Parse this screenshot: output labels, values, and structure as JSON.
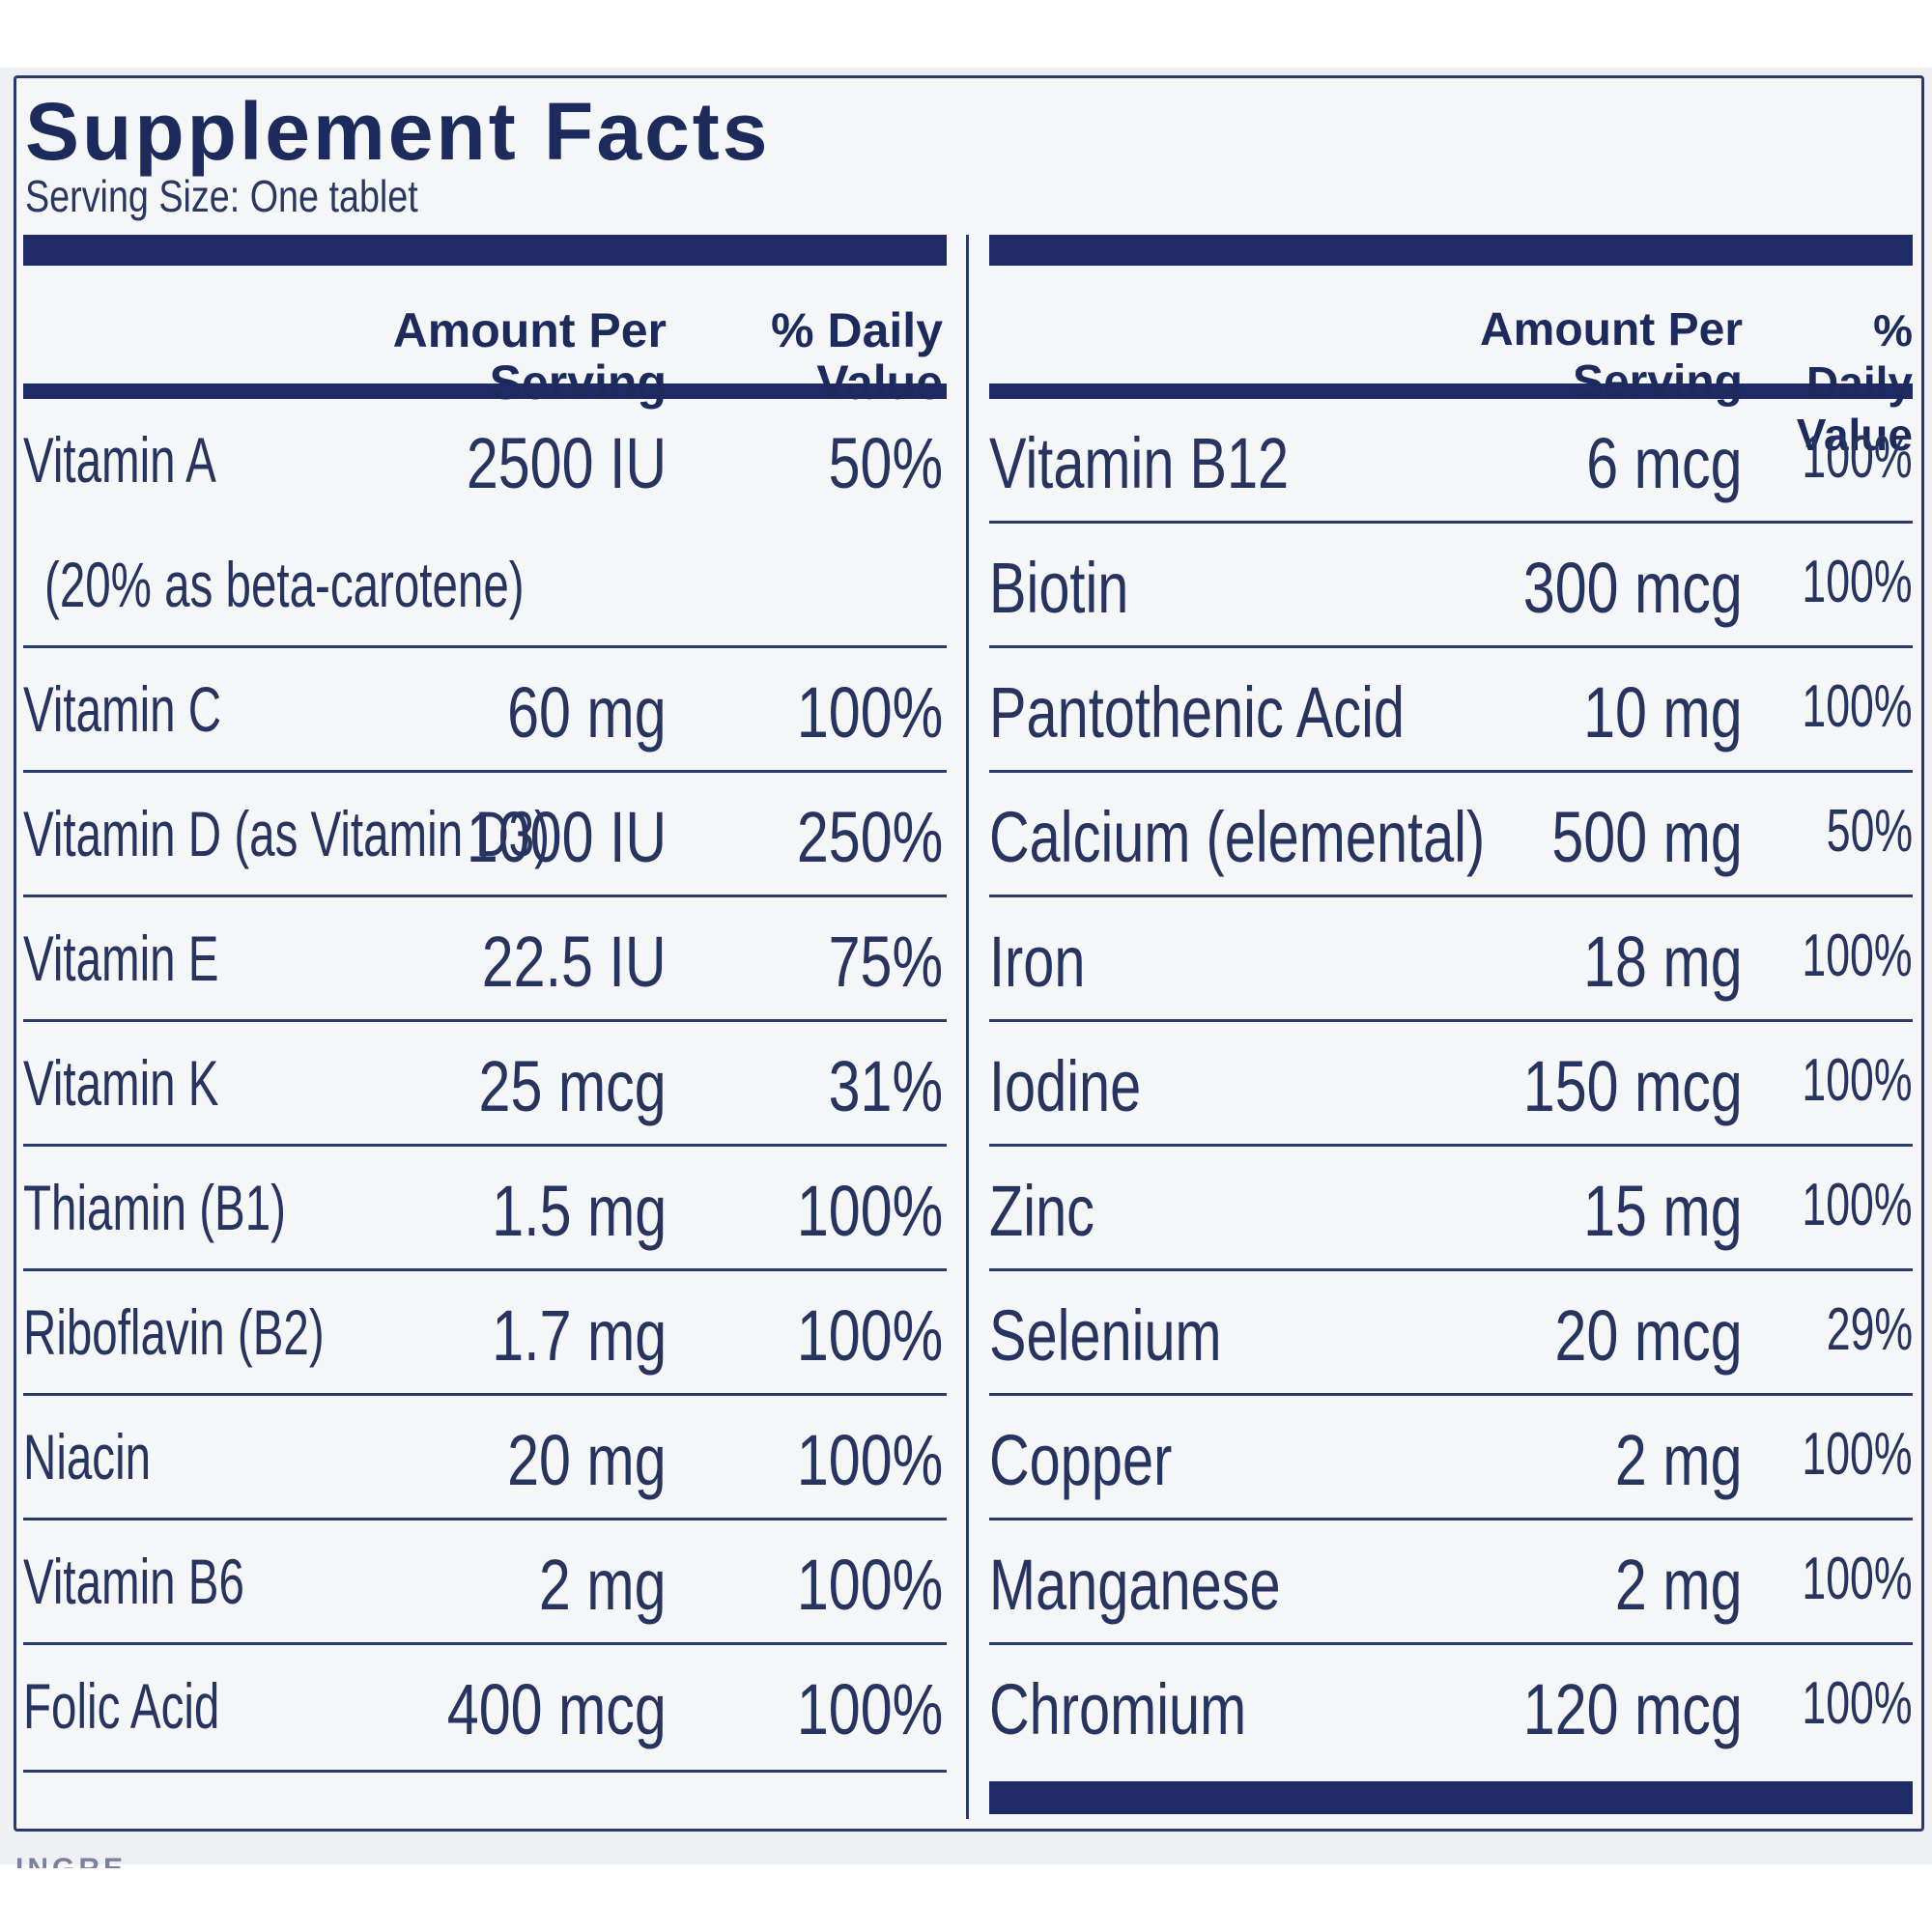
{
  "title": "Supplement Facts",
  "serving_size": "Serving Size: One tablet",
  "headers": {
    "amount": "Amount Per Serving",
    "daily_value": "% Daily Value"
  },
  "left_rows": [
    {
      "name": "Vitamin A",
      "amount": "2500 IU",
      "dv": "50%"
    },
    {
      "name": "(20% as beta-carotene)",
      "amount": "",
      "dv": ""
    },
    {
      "name": "Vitamin C",
      "amount": "60 mg",
      "dv": "100%"
    },
    {
      "name": "Vitamin D (as Vitamin D3)",
      "amount": "1000 IU",
      "dv": "250%"
    },
    {
      "name": "Vitamin E",
      "amount": "22.5 IU",
      "dv": "75%"
    },
    {
      "name": "Vitamin K",
      "amount": "25 mcg",
      "dv": "31%"
    },
    {
      "name": "Thiamin (B1)",
      "amount": "1.5 mg",
      "dv": "100%"
    },
    {
      "name": "Riboflavin (B2)",
      "amount": "1.7 mg",
      "dv": "100%"
    },
    {
      "name": "Niacin",
      "amount": "20 mg",
      "dv": "100%"
    },
    {
      "name": "Vitamin B6",
      "amount": "2 mg",
      "dv": "100%"
    },
    {
      "name": "Folic Acid",
      "amount": "400 mcg",
      "dv": "100%"
    }
  ],
  "right_rows": [
    {
      "name": "Vitamin B12",
      "amount": "6 mcg",
      "dv": "100%"
    },
    {
      "name": "Biotin",
      "amount": "300 mcg",
      "dv": "100%"
    },
    {
      "name": "Pantothenic Acid",
      "amount": "10 mg",
      "dv": "100%"
    },
    {
      "name": "Calcium (elemental)",
      "amount": "500 mg",
      "dv": "50%"
    },
    {
      "name": "Iron",
      "amount": "18 mg",
      "dv": "100%"
    },
    {
      "name": "Iodine",
      "amount": "150 mcg",
      "dv": "100%"
    },
    {
      "name": "Zinc",
      "amount": "15 mg",
      "dv": "100%"
    },
    {
      "name": "Selenium",
      "amount": "20 mcg",
      "dv": "29%"
    },
    {
      "name": "Copper",
      "amount": "2 mg",
      "dv": "100%"
    },
    {
      "name": "Manganese",
      "amount": "2 mg",
      "dv": "100%"
    },
    {
      "name": "Chromium",
      "amount": "120 mcg",
      "dv": "100%"
    }
  ],
  "partial_footer": "INGRE"
}
